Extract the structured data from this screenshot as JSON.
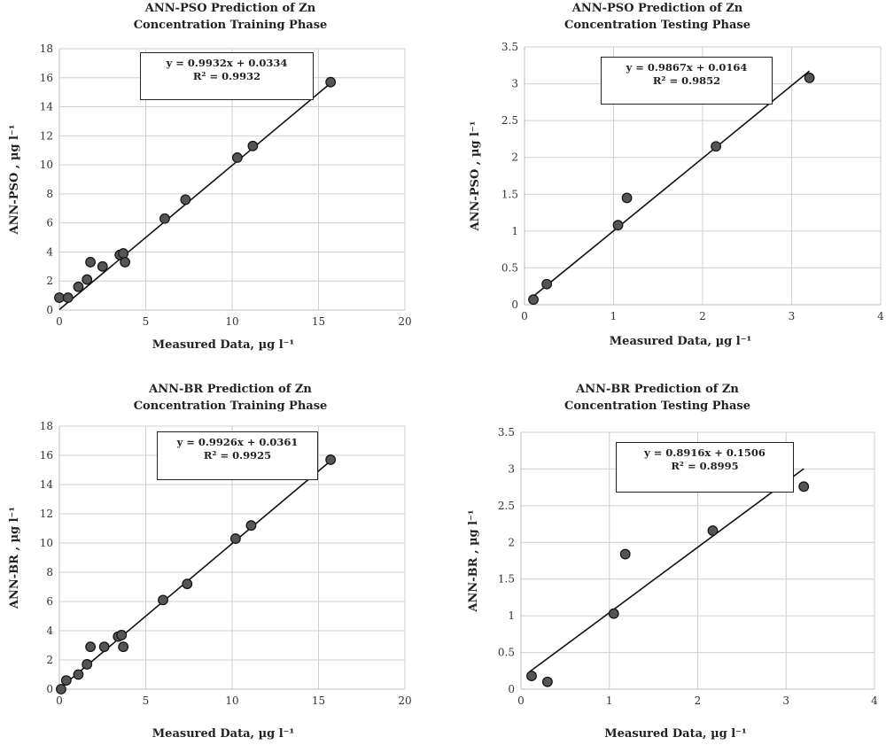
{
  "chart_data": [
    {
      "type": "scatter",
      "title_lines": [
        "ANN-PSO Prediction of Zn",
        "Concentration Training Phase"
      ],
      "xlabel": "Measured Data, µg l⁻¹",
      "ylabel": "ANN-PSO , µg l⁻¹",
      "xlim": [
        0,
        20
      ],
      "ylim": [
        0,
        18
      ],
      "xticks": [
        "0",
        "5",
        "10",
        "15",
        "20"
      ],
      "yticks": [
        "0",
        "2",
        "4",
        "6",
        "8",
        "10",
        "12",
        "14",
        "16",
        "18"
      ],
      "grid": true,
      "trendline": {
        "equation": "y = 0.9932x + 0.0334",
        "r2": "R² = 0.9932",
        "slope": 0.9932,
        "intercept": 0.0334,
        "x_range": [
          0,
          15.6
        ]
      },
      "points": [
        {
          "x": 0.0,
          "y": 0.85
        },
        {
          "x": 0.5,
          "y": 0.85
        },
        {
          "x": 1.1,
          "y": 1.6
        },
        {
          "x": 1.6,
          "y": 2.1
        },
        {
          "x": 1.8,
          "y": 3.3
        },
        {
          "x": 2.5,
          "y": 3.0
        },
        {
          "x": 3.5,
          "y": 3.8
        },
        {
          "x": 3.7,
          "y": 3.9
        },
        {
          "x": 3.8,
          "y": 3.3
        },
        {
          "x": 6.1,
          "y": 6.3
        },
        {
          "x": 7.3,
          "y": 7.6
        },
        {
          "x": 10.3,
          "y": 10.5
        },
        {
          "x": 11.2,
          "y": 11.3
        },
        {
          "x": 15.7,
          "y": 15.7
        }
      ]
    },
    {
      "type": "scatter",
      "title_lines": [
        "ANN-PSO Prediction of Zn",
        "Concentration Testing Phase"
      ],
      "xlabel": "Measured Data, µg l⁻¹",
      "ylabel": "ANN-PSO , µg l⁻¹",
      "xlim": [
        0,
        4
      ],
      "ylim": [
        0,
        3.5
      ],
      "xticks": [
        "0",
        "1",
        "2",
        "3",
        "4"
      ],
      "yticks": [
        "0",
        "0.5",
        "1",
        "1.5",
        "2",
        "2.5",
        "3",
        "3.5"
      ],
      "grid": true,
      "trendline": {
        "equation": "y = 0.9867x + 0.0164",
        "r2": "R² = 0.9852",
        "slope": 0.9867,
        "intercept": 0.0164,
        "x_range": [
          0.05,
          3.2
        ]
      },
      "points": [
        {
          "x": 0.1,
          "y": 0.07
        },
        {
          "x": 0.25,
          "y": 0.28
        },
        {
          "x": 1.05,
          "y": 1.08
        },
        {
          "x": 1.15,
          "y": 1.45
        },
        {
          "x": 2.15,
          "y": 2.15
        },
        {
          "x": 3.2,
          "y": 3.08
        }
      ]
    },
    {
      "type": "scatter",
      "title_lines": [
        "ANN-BR Prediction of Zn",
        "Concentration Training Phase"
      ],
      "xlabel": "Measured Data, µg l⁻¹",
      "ylabel": "ANN-BR , µg l⁻¹",
      "xlim": [
        0,
        20
      ],
      "ylim": [
        0,
        18
      ],
      "xticks": [
        "0",
        "5",
        "10",
        "15",
        "20"
      ],
      "yticks": [
        "0",
        "2",
        "4",
        "6",
        "8",
        "10",
        "12",
        "14",
        "16",
        "18"
      ],
      "grid": true,
      "trendline": {
        "equation": "y = 0.9926x + 0.0361",
        "r2": "R² = 0.9925",
        "slope": 0.9926,
        "intercept": 0.0361,
        "x_range": [
          0,
          15.7
        ]
      },
      "points": [
        {
          "x": 0.1,
          "y": 0.0
        },
        {
          "x": 0.4,
          "y": 0.6
        },
        {
          "x": 1.1,
          "y": 1.0
        },
        {
          "x": 1.6,
          "y": 1.7
        },
        {
          "x": 1.8,
          "y": 2.9
        },
        {
          "x": 2.6,
          "y": 2.9
        },
        {
          "x": 3.4,
          "y": 3.6
        },
        {
          "x": 3.6,
          "y": 3.7
        },
        {
          "x": 3.7,
          "y": 2.9
        },
        {
          "x": 6.0,
          "y": 6.1
        },
        {
          "x": 7.4,
          "y": 7.2
        },
        {
          "x": 10.2,
          "y": 10.3
        },
        {
          "x": 11.1,
          "y": 11.2
        },
        {
          "x": 15.7,
          "y": 15.7
        }
      ]
    },
    {
      "type": "scatter",
      "title_lines": [
        "ANN-BR Prediction of Zn",
        "Concentration Testing Phase"
      ],
      "xlabel": "Measured Data, µg l⁻¹",
      "ylabel": "ANN-BR , µg l⁻¹",
      "xlim": [
        0,
        4
      ],
      "ylim": [
        0,
        3.5
      ],
      "xticks": [
        "0",
        "1",
        "2",
        "3",
        "4"
      ],
      "yticks": [
        "0",
        "0.5",
        "1",
        "1.5",
        "2",
        "2.5",
        "3",
        "3.5"
      ],
      "grid": true,
      "trendline": {
        "equation": "y = 0.8916x + 0.1506",
        "r2": "R² = 0.8995",
        "slope": 0.8916,
        "intercept": 0.1506,
        "x_range": [
          0.1,
          3.2
        ]
      },
      "points": [
        {
          "x": 0.12,
          "y": 0.18
        },
        {
          "x": 0.3,
          "y": 0.1
        },
        {
          "x": 1.05,
          "y": 1.03
        },
        {
          "x": 1.18,
          "y": 1.84
        },
        {
          "x": 2.17,
          "y": 2.16
        },
        {
          "x": 3.2,
          "y": 2.76
        }
      ]
    }
  ]
}
